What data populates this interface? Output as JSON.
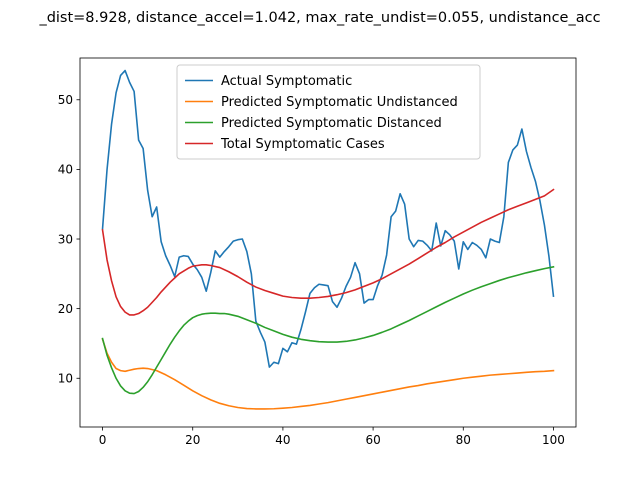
{
  "chart_data": {
    "type": "line",
    "title": "_dist=8.928, distance_accel=1.042, max_rate_undist=0.055, undistance_acc",
    "xlabel": "",
    "ylabel": "",
    "xlim": [
      -5,
      105
    ],
    "ylim": [
      3,
      56
    ],
    "x_ticks": [
      0,
      20,
      40,
      60,
      80,
      100
    ],
    "y_ticks": [
      10,
      20,
      30,
      40,
      50
    ],
    "grid": false,
    "legend_position": "top-center",
    "series": [
      {
        "name": "Actual Symptomatic",
        "color": "#1f77b4",
        "points": [
          [
            0,
            31.5
          ],
          [
            1,
            40
          ],
          [
            2,
            46.5
          ],
          [
            3,
            51
          ],
          [
            4,
            53.5
          ],
          [
            5,
            54.2
          ],
          [
            6,
            52.5
          ],
          [
            7,
            51.2
          ],
          [
            8,
            44.2
          ],
          [
            9,
            43
          ],
          [
            10,
            37
          ],
          [
            11,
            33.2
          ],
          [
            12,
            34.6
          ],
          [
            13,
            29.6
          ],
          [
            14,
            27.6
          ],
          [
            15,
            26.2
          ],
          [
            16,
            24.6
          ],
          [
            17,
            27.4
          ],
          [
            18,
            27.6
          ],
          [
            19,
            27.5
          ],
          [
            20,
            26.4
          ],
          [
            21,
            25.6
          ],
          [
            22,
            24.5
          ],
          [
            23,
            22.5
          ],
          [
            24,
            25.2
          ],
          [
            25,
            28.3
          ],
          [
            26,
            27.4
          ],
          [
            27,
            28.2
          ],
          [
            28,
            28.9
          ],
          [
            29,
            29.7
          ],
          [
            30,
            29.9
          ],
          [
            31,
            30.0
          ],
          [
            32,
            28.2
          ],
          [
            33,
            25.0
          ],
          [
            34,
            18.2
          ],
          [
            35,
            16.6
          ],
          [
            36,
            15.2
          ],
          [
            37,
            11.6
          ],
          [
            38,
            12.3
          ],
          [
            39,
            12.1
          ],
          [
            40,
            14.3
          ],
          [
            41,
            13.8
          ],
          [
            42,
            15.1
          ],
          [
            43,
            14.9
          ],
          [
            44,
            17.0
          ],
          [
            45,
            19.5
          ],
          [
            46,
            22.2
          ],
          [
            47,
            23.0
          ],
          [
            48,
            23.5
          ],
          [
            49,
            23.4
          ],
          [
            50,
            23.3
          ],
          [
            51,
            21.0
          ],
          [
            52,
            20.2
          ],
          [
            53,
            21.5
          ],
          [
            54,
            23.2
          ],
          [
            55,
            24.5
          ],
          [
            56,
            26.6
          ],
          [
            57,
            25.0
          ],
          [
            58,
            20.8
          ],
          [
            59,
            21.3
          ],
          [
            60,
            21.3
          ],
          [
            61,
            23.3
          ],
          [
            62,
            24.8
          ],
          [
            63,
            27.7
          ],
          [
            64,
            33.2
          ],
          [
            65,
            34.0
          ],
          [
            66,
            36.5
          ],
          [
            67,
            35.0
          ],
          [
            68,
            30.0
          ],
          [
            69,
            28.9
          ],
          [
            70,
            29.8
          ],
          [
            71,
            29.7
          ],
          [
            72,
            29.1
          ],
          [
            73,
            28.3
          ],
          [
            74,
            32.3
          ],
          [
            75,
            29.0
          ],
          [
            76,
            31.2
          ],
          [
            77,
            30.6
          ],
          [
            78,
            29.7
          ],
          [
            79,
            25.7
          ],
          [
            80,
            29.6
          ],
          [
            81,
            28.5
          ],
          [
            82,
            29.5
          ],
          [
            83,
            29.1
          ],
          [
            84,
            28.5
          ],
          [
            85,
            27.3
          ],
          [
            86,
            30.0
          ],
          [
            87,
            29.7
          ],
          [
            88,
            29.5
          ],
          [
            89,
            33.2
          ],
          [
            90,
            41.0
          ],
          [
            91,
            42.8
          ],
          [
            92,
            43.5
          ],
          [
            93,
            45.8
          ],
          [
            94,
            42.6
          ],
          [
            95,
            40.3
          ],
          [
            96,
            38.3
          ],
          [
            97,
            35.5
          ],
          [
            98,
            32.0
          ],
          [
            99,
            27.5
          ],
          [
            100,
            21.8
          ]
        ]
      },
      {
        "name": "Predicted Symptomatic Undistanced",
        "color": "#ff7f0e",
        "points": [
          [
            0,
            15.6
          ],
          [
            1,
            13.6
          ],
          [
            2,
            12.3
          ],
          [
            3,
            11.4
          ],
          [
            4,
            11.1
          ],
          [
            5,
            11.0
          ],
          [
            6,
            11.15
          ],
          [
            7,
            11.3
          ],
          [
            8,
            11.4
          ],
          [
            9,
            11.45
          ],
          [
            10,
            11.4
          ],
          [
            12,
            11.1
          ],
          [
            14,
            10.5
          ],
          [
            16,
            9.8
          ],
          [
            18,
            9.0
          ],
          [
            20,
            8.2
          ],
          [
            22,
            7.5
          ],
          [
            24,
            6.9
          ],
          [
            26,
            6.4
          ],
          [
            28,
            6.05
          ],
          [
            30,
            5.8
          ],
          [
            32,
            5.65
          ],
          [
            34,
            5.6
          ],
          [
            36,
            5.6
          ],
          [
            38,
            5.62
          ],
          [
            40,
            5.7
          ],
          [
            42,
            5.8
          ],
          [
            44,
            5.95
          ],
          [
            46,
            6.1
          ],
          [
            48,
            6.3
          ],
          [
            50,
            6.5
          ],
          [
            52,
            6.75
          ],
          [
            54,
            7.0
          ],
          [
            56,
            7.25
          ],
          [
            58,
            7.5
          ],
          [
            60,
            7.75
          ],
          [
            62,
            8.0
          ],
          [
            64,
            8.25
          ],
          [
            66,
            8.5
          ],
          [
            68,
            8.75
          ],
          [
            70,
            8.95
          ],
          [
            72,
            9.2
          ],
          [
            74,
            9.4
          ],
          [
            76,
            9.6
          ],
          [
            78,
            9.8
          ],
          [
            80,
            10.0
          ],
          [
            82,
            10.15
          ],
          [
            84,
            10.3
          ],
          [
            86,
            10.45
          ],
          [
            88,
            10.55
          ],
          [
            90,
            10.65
          ],
          [
            92,
            10.75
          ],
          [
            94,
            10.85
          ],
          [
            96,
            10.95
          ],
          [
            98,
            11.0
          ],
          [
            100,
            11.1
          ]
        ]
      },
      {
        "name": "Predicted Symptomatic Distanced",
        "color": "#2ca02c",
        "points": [
          [
            0,
            15.7
          ],
          [
            1,
            13.3
          ],
          [
            2,
            11.5
          ],
          [
            3,
            10.0
          ],
          [
            4,
            8.9
          ],
          [
            5,
            8.2
          ],
          [
            6,
            7.85
          ],
          [
            7,
            7.8
          ],
          [
            8,
            8.1
          ],
          [
            9,
            8.7
          ],
          [
            10,
            9.5
          ],
          [
            11,
            10.5
          ],
          [
            12,
            11.6
          ],
          [
            13,
            12.7
          ],
          [
            14,
            13.8
          ],
          [
            15,
            14.9
          ],
          [
            16,
            15.9
          ],
          [
            17,
            16.8
          ],
          [
            18,
            17.6
          ],
          [
            19,
            18.2
          ],
          [
            20,
            18.7
          ],
          [
            21,
            19.0
          ],
          [
            22,
            19.2
          ],
          [
            23,
            19.3
          ],
          [
            24,
            19.35
          ],
          [
            25,
            19.35
          ],
          [
            26,
            19.3
          ],
          [
            27,
            19.3
          ],
          [
            28,
            19.2
          ],
          [
            30,
            18.9
          ],
          [
            32,
            18.4
          ],
          [
            34,
            17.9
          ],
          [
            36,
            17.3
          ],
          [
            38,
            16.8
          ],
          [
            40,
            16.3
          ],
          [
            42,
            15.9
          ],
          [
            44,
            15.6
          ],
          [
            46,
            15.4
          ],
          [
            48,
            15.25
          ],
          [
            50,
            15.2
          ],
          [
            52,
            15.2
          ],
          [
            54,
            15.3
          ],
          [
            56,
            15.5
          ],
          [
            58,
            15.8
          ],
          [
            60,
            16.15
          ],
          [
            62,
            16.6
          ],
          [
            64,
            17.1
          ],
          [
            66,
            17.7
          ],
          [
            68,
            18.3
          ],
          [
            70,
            18.95
          ],
          [
            72,
            19.6
          ],
          [
            74,
            20.25
          ],
          [
            76,
            20.9
          ],
          [
            78,
            21.5
          ],
          [
            80,
            22.1
          ],
          [
            82,
            22.65
          ],
          [
            84,
            23.15
          ],
          [
            86,
            23.6
          ],
          [
            88,
            24.05
          ],
          [
            90,
            24.45
          ],
          [
            92,
            24.8
          ],
          [
            94,
            25.15
          ],
          [
            96,
            25.45
          ],
          [
            98,
            25.75
          ],
          [
            100,
            26.0
          ]
        ]
      },
      {
        "name": "Total Symptomatic Cases",
        "color": "#d62728",
        "points": [
          [
            0,
            31.3
          ],
          [
            1,
            27.0
          ],
          [
            2,
            24.0
          ],
          [
            3,
            21.7
          ],
          [
            4,
            20.3
          ],
          [
            5,
            19.5
          ],
          [
            6,
            19.1
          ],
          [
            7,
            19.1
          ],
          [
            8,
            19.3
          ],
          [
            9,
            19.7
          ],
          [
            10,
            20.2
          ],
          [
            11,
            20.9
          ],
          [
            12,
            21.6
          ],
          [
            13,
            22.4
          ],
          [
            14,
            23.1
          ],
          [
            15,
            23.8
          ],
          [
            16,
            24.4
          ],
          [
            17,
            25.0
          ],
          [
            18,
            25.4
          ],
          [
            19,
            25.8
          ],
          [
            20,
            26.1
          ],
          [
            21,
            26.2
          ],
          [
            22,
            26.3
          ],
          [
            23,
            26.3
          ],
          [
            24,
            26.2
          ],
          [
            26,
            25.9
          ],
          [
            28,
            25.3
          ],
          [
            30,
            24.6
          ],
          [
            32,
            23.8
          ],
          [
            34,
            23.1
          ],
          [
            36,
            22.6
          ],
          [
            38,
            22.2
          ],
          [
            40,
            21.8
          ],
          [
            42,
            21.6
          ],
          [
            44,
            21.5
          ],
          [
            46,
            21.5
          ],
          [
            48,
            21.6
          ],
          [
            50,
            21.75
          ],
          [
            52,
            22.0
          ],
          [
            54,
            22.3
          ],
          [
            56,
            22.7
          ],
          [
            58,
            23.2
          ],
          [
            60,
            23.7
          ],
          [
            62,
            24.3
          ],
          [
            64,
            25.0
          ],
          [
            66,
            25.7
          ],
          [
            68,
            26.4
          ],
          [
            70,
            27.2
          ],
          [
            72,
            28.0
          ],
          [
            74,
            28.8
          ],
          [
            76,
            29.5
          ],
          [
            78,
            30.3
          ],
          [
            80,
            31.0
          ],
          [
            82,
            31.7
          ],
          [
            84,
            32.4
          ],
          [
            86,
            33.0
          ],
          [
            88,
            33.6
          ],
          [
            90,
            34.2
          ],
          [
            92,
            34.7
          ],
          [
            94,
            35.2
          ],
          [
            96,
            35.7
          ],
          [
            98,
            36.2
          ],
          [
            100,
            37.1
          ]
        ]
      }
    ]
  }
}
